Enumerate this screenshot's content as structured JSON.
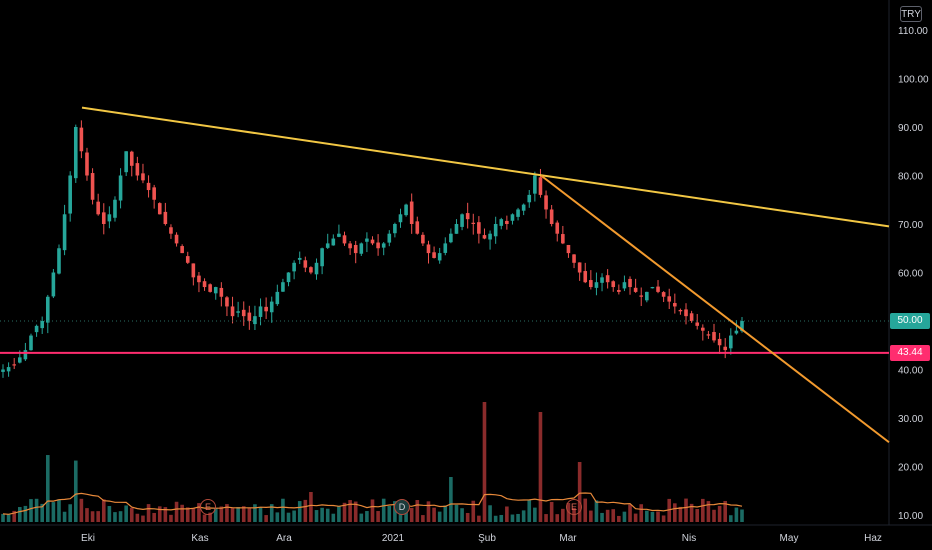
{
  "currency": "TRY",
  "colors": {
    "up": "#26a69a",
    "down": "#ef5350",
    "vol_up": "#1b6b64",
    "vol_down": "#8a2b2b",
    "volume_ma": "#e8893a",
    "support_line": "#ff2d6f",
    "resistance_line": "#f2c744",
    "downtrend_line": "#f29a2e",
    "current_price": "#26a69a",
    "grid_dot": "#2a6e63",
    "event_border": "#b34a3a"
  },
  "last_price": "50.00",
  "support_price": "43.44",
  "events": [
    {
      "label": "E",
      "date": "Kas"
    },
    {
      "label": "D",
      "date": "2021"
    },
    {
      "label": "E",
      "date": "Mar"
    }
  ],
  "chart_data": {
    "type": "candlestick",
    "title": "",
    "y_axis": {
      "ticks": [
        "110.00",
        "100.00",
        "90.00",
        "80.00",
        "70.00",
        "60.00",
        "50.00",
        "40.00",
        "30.00",
        "20.00",
        "10.00"
      ],
      "range": [
        10,
        112
      ]
    },
    "x_axis": {
      "ticks": [
        "Eki",
        "Kas",
        "Ara",
        "2021",
        "Şub",
        "Mar",
        "Nis",
        "May",
        "Haz"
      ]
    },
    "close_series": [
      40,
      40.5,
      41,
      42.5,
      44,
      47,
      49,
      50,
      55,
      60,
      65,
      72,
      80,
      90,
      85,
      80,
      75,
      72,
      70,
      72,
      75,
      80,
      85,
      82,
      80,
      79,
      77,
      75,
      72,
      70,
      68,
      66,
      64,
      62,
      59,
      58,
      57,
      56,
      57,
      55,
      53,
      51,
      52,
      51,
      50,
      51,
      53,
      52,
      54,
      56,
      58,
      60,
      62,
      63,
      61,
      60,
      62,
      65,
      66,
      67,
      68,
      66,
      65,
      64,
      66,
      67,
      66,
      65,
      66,
      68,
      70,
      72,
      74,
      70,
      68,
      66,
      64,
      63,
      64,
      66,
      68,
      70,
      72,
      71,
      70,
      68,
      67,
      68,
      70,
      71,
      70,
      72,
      73,
      74,
      76,
      80,
      76,
      73,
      70,
      68,
      66,
      64,
      62,
      60,
      58,
      57,
      58,
      59,
      58,
      57,
      56,
      58,
      57,
      56,
      55,
      56,
      57,
      56,
      55,
      54,
      53,
      52,
      51,
      50,
      49,
      48,
      47,
      46,
      45,
      44,
      47,
      48,
      50
    ],
    "trendlines": [
      {
        "name": "resistance",
        "from": {
          "date": "Eki",
          "price": 94
        },
        "to": {
          "date": "Haz",
          "price": 69.5
        }
      },
      {
        "name": "downtrend",
        "from": {
          "date": "Şub",
          "price": 80
        },
        "to": {
          "date": "Haz",
          "price": 25
        }
      }
    ],
    "horizontal_lines": [
      {
        "price": 43.44
      },
      {
        "price": 50.0
      }
    ],
    "volume_ma": true
  }
}
